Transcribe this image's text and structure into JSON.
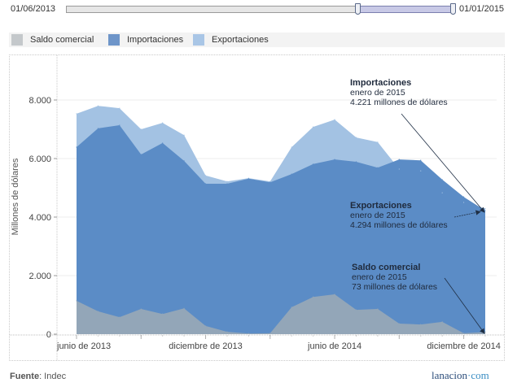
{
  "slider": {
    "start_label": "01/06/2013",
    "end_label": "01/01/2015",
    "range_start_fraction": 0.753,
    "range_end_fraction": 1.0
  },
  "legend": [
    {
      "label": "Saldo comercial",
      "color": "#c4c8cb"
    },
    {
      "label": "Importaciones",
      "color": "#6e95c9"
    },
    {
      "label": "Exportaciones",
      "color": "#a9c6e6"
    }
  ],
  "footer": {
    "source_label": "Fuente",
    "source_value": ": Indec",
    "brand": "lanacion",
    "brand_dot": "·",
    "brand_suffix": "com"
  },
  "chart_data": {
    "type": "area",
    "title": "",
    "xlabel": "",
    "ylabel": "Millones de dólares",
    "ylim": [
      0,
      9000
    ],
    "yticks": [
      0,
      2000,
      4000,
      6000,
      8000
    ],
    "ytick_labels": [
      "0",
      "2.000",
      "4.000",
      "6.000",
      "8.000"
    ],
    "x": [
      "2013-06",
      "2013-07",
      "2013-08",
      "2013-09",
      "2013-10",
      "2013-11",
      "2013-12",
      "2014-01",
      "2014-02",
      "2014-03",
      "2014-04",
      "2014-05",
      "2014-06",
      "2014-07",
      "2014-08",
      "2014-09",
      "2014-10",
      "2014-11",
      "2014-12",
      "2015-01"
    ],
    "xtick_labels": [
      {
        "month_index": 0,
        "label": "junio de 2013"
      },
      {
        "month_index": 6,
        "label": "diciembre de 2013"
      },
      {
        "month_index": 12,
        "label": "junio de 2014"
      },
      {
        "month_index": 18,
        "label": "diciembre de 2014"
      }
    ],
    "minor_tick_months": [
      3,
      9,
      15
    ],
    "grid": true,
    "series": [
      {
        "name": "Exportaciones",
        "color": "#a3c2e3",
        "values": [
          7530,
          7800,
          7720,
          7000,
          7220,
          6800,
          5420,
          5220,
          5330,
          5220,
          6390,
          7080,
          7330,
          6720,
          6560,
          5640,
          5580,
          4830,
          4500,
          4294
        ]
      },
      {
        "name": "Importaciones",
        "color": "#5b8cc6",
        "values": [
          6390,
          7030,
          7140,
          6140,
          6530,
          5920,
          5140,
          5140,
          5310,
          5190,
          5470,
          5810,
          5970,
          5890,
          5690,
          5970,
          5940,
          5280,
          4690,
          4221
        ]
      },
      {
        "name": "Saldo comercial",
        "color": "#93a6b8",
        "values": [
          1140,
          780,
          580,
          860,
          690,
          880,
          280,
          80,
          20,
          30,
          920,
          1270,
          1360,
          830,
          860,
          360,
          330,
          420,
          30,
          73
        ]
      }
    ],
    "annotations": [
      {
        "series": "Importaciones",
        "title": "Importaciones",
        "line1": "enero de 2015",
        "line2": "4.221 millones de dólares"
      },
      {
        "series": "Exportaciones",
        "title": "Exportaciones",
        "line1": "enero de 2015",
        "line2": "4.294 millones de dólares"
      },
      {
        "series": "Saldo comercial",
        "title": "Saldo comercial",
        "line1": "enero de 2015",
        "line2": "73 millones de dólares"
      }
    ]
  }
}
